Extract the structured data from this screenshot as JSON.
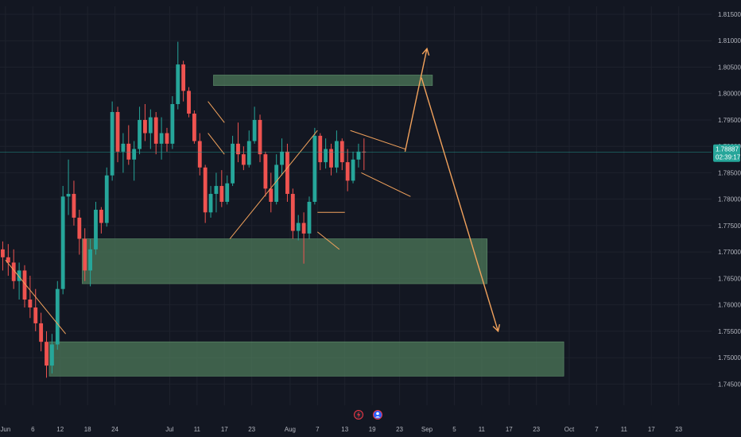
{
  "chart_data": {
    "type": "candlestick",
    "instrument_quote": {
      "last_price": 1.78887,
      "countdown": "02:39:17"
    },
    "colors": {
      "background": "#131722",
      "up": "#26a69a",
      "down": "#ef5350",
      "zone_fill": "#4e7a5a",
      "projection": "#f2a25c",
      "price_tag_bg": "#26a69a",
      "grid": "#1e222d",
      "axis_text": "#b2b5be",
      "last_price_line": "#26a69a"
    },
    "y_axis": {
      "range": [
        1.7425,
        1.8165
      ],
      "tick_labels": [
        "1.81500",
        "1.81000",
        "1.80500",
        "1.80000",
        "1.79500",
        "1.79000",
        "1.78500",
        "1.78000",
        "1.77500",
        "1.77000",
        "1.76500",
        "1.76000",
        "1.75500",
        "1.75000",
        "1.74500"
      ],
      "tick_values": [
        1.815,
        1.81,
        1.805,
        1.8,
        1.795,
        1.79,
        1.785,
        1.78,
        1.775,
        1.77,
        1.765,
        1.76,
        1.755,
        1.75,
        1.745
      ]
    },
    "x_axis": {
      "range": [
        0,
        130
      ],
      "tick_labels": [
        "Jun",
        "6",
        "12",
        "18",
        "24",
        "Jul",
        "11",
        "17",
        "23",
        "Aug",
        "7",
        "13",
        "19",
        "23",
        "Sep",
        "5",
        "11",
        "17",
        "23",
        "Oct",
        "7",
        "11",
        "17",
        "23"
      ],
      "tick_days": [
        1,
        6,
        11,
        16,
        21,
        31,
        36,
        41,
        46,
        53,
        58,
        63,
        68,
        73,
        78,
        83,
        88,
        93,
        98,
        104,
        109,
        114,
        119,
        124
      ]
    },
    "candles_ohlc": [
      [
        1.7705,
        1.772,
        1.7665,
        1.769
      ],
      [
        1.769,
        1.7715,
        1.7655,
        1.768
      ],
      [
        1.768,
        1.7705,
        1.763,
        1.7645
      ],
      [
        1.7645,
        1.768,
        1.761,
        1.7665
      ],
      [
        1.7665,
        1.7675,
        1.7595,
        1.761
      ],
      [
        1.761,
        1.7655,
        1.7575,
        1.7595
      ],
      [
        1.7595,
        1.763,
        1.755,
        1.7565
      ],
      [
        1.7565,
        1.7585,
        1.7512,
        1.753
      ],
      [
        1.753,
        1.755,
        1.7462,
        1.7485
      ],
      [
        1.7485,
        1.7545,
        1.747,
        1.7525
      ],
      [
        1.7525,
        1.7645,
        1.7515,
        1.763
      ],
      [
        1.763,
        1.7825,
        1.762,
        1.7805
      ],
      [
        1.7805,
        1.7875,
        1.777,
        1.781
      ],
      [
        1.781,
        1.7835,
        1.775,
        1.7765
      ],
      [
        1.7765,
        1.778,
        1.7695,
        1.7725
      ],
      [
        1.7725,
        1.7745,
        1.7645,
        1.7665
      ],
      [
        1.7665,
        1.7725,
        1.7635,
        1.7705
      ],
      [
        1.7705,
        1.7795,
        1.7695,
        1.778
      ],
      [
        1.778,
        1.7785,
        1.7735,
        1.7755
      ],
      [
        1.7755,
        1.786,
        1.7748,
        1.7845
      ],
      [
        1.7845,
        1.7985,
        1.7835,
        1.7965
      ],
      [
        1.7965,
        1.7975,
        1.787,
        1.789
      ],
      [
        1.789,
        1.7925,
        1.785,
        1.7905
      ],
      [
        1.7905,
        1.794,
        1.7865,
        1.7875
      ],
      [
        1.7875,
        1.791,
        1.7835,
        1.7895
      ],
      [
        1.7895,
        1.7975,
        1.7885,
        1.795
      ],
      [
        1.795,
        1.798,
        1.791,
        1.7925
      ],
      [
        1.7925,
        1.797,
        1.7895,
        1.7955
      ],
      [
        1.7955,
        1.7965,
        1.7885,
        1.7905
      ],
      [
        1.7905,
        1.7955,
        1.7875,
        1.7925
      ],
      [
        1.7925,
        1.7935,
        1.789,
        1.7905
      ],
      [
        1.7905,
        1.7995,
        1.7895,
        1.798
      ],
      [
        1.798,
        1.8098,
        1.797,
        1.8055
      ],
      [
        1.8055,
        1.8062,
        1.7985,
        1.8005
      ],
      [
        1.8005,
        1.8012,
        1.7955,
        1.7962
      ],
      [
        1.7962,
        1.7968,
        1.7905,
        1.791
      ],
      [
        1.791,
        1.7925,
        1.7845,
        1.786
      ],
      [
        1.786,
        1.7865,
        1.7755,
        1.7775
      ],
      [
        1.7775,
        1.7825,
        1.7765,
        1.781
      ],
      [
        1.781,
        1.785,
        1.7775,
        1.7825
      ],
      [
        1.7825,
        1.7855,
        1.7785,
        1.7795
      ],
      [
        1.7795,
        1.7845,
        1.779,
        1.783
      ],
      [
        1.783,
        1.792,
        1.7825,
        1.7905
      ],
      [
        1.7905,
        1.7945,
        1.787,
        1.7885
      ],
      [
        1.7885,
        1.79,
        1.7855,
        1.7865
      ],
      [
        1.7865,
        1.793,
        1.786,
        1.791
      ],
      [
        1.791,
        1.7975,
        1.7905,
        1.795
      ],
      [
        1.795,
        1.796,
        1.787,
        1.7885
      ],
      [
        1.7885,
        1.789,
        1.7805,
        1.782
      ],
      [
        1.782,
        1.785,
        1.7775,
        1.7795
      ],
      [
        1.7795,
        1.7885,
        1.779,
        1.7865
      ],
      [
        1.7865,
        1.7915,
        1.7845,
        1.789
      ],
      [
        1.789,
        1.7905,
        1.7795,
        1.781
      ],
      [
        1.781,
        1.782,
        1.7725,
        1.774
      ],
      [
        1.774,
        1.777,
        1.7722,
        1.7755
      ],
      [
        1.7755,
        1.7775,
        1.7678,
        1.7735
      ],
      [
        1.7735,
        1.7805,
        1.7725,
        1.7795
      ],
      [
        1.7795,
        1.7935,
        1.779,
        1.792
      ],
      [
        1.792,
        1.7925,
        1.7855,
        1.787
      ],
      [
        1.787,
        1.7915,
        1.7858,
        1.7895
      ],
      [
        1.7895,
        1.7905,
        1.7845,
        1.786
      ],
      [
        1.786,
        1.793,
        1.785,
        1.791
      ],
      [
        1.791,
        1.7915,
        1.7855,
        1.787
      ],
      [
        1.787,
        1.7895,
        1.7815,
        1.7835
      ],
      [
        1.7835,
        1.789,
        1.783,
        1.7875
      ],
      [
        1.7875,
        1.7905,
        1.786,
        1.789
      ],
      [
        1.789,
        1.7915,
        1.7855,
        1.78887
      ]
    ],
    "zones": [
      {
        "from_day": 39,
        "to_day": 79,
        "top": 1.8035,
        "bottom": 1.8015
      },
      {
        "from_day": 15,
        "to_day": 89,
        "top": 1.7725,
        "bottom": 1.764
      },
      {
        "from_day": 9,
        "to_day": 103,
        "top": 1.753,
        "bottom": 1.7465
      }
    ],
    "projection_path": [
      {
        "day": 74,
        "price": 1.789
      },
      {
        "day": 78,
        "price": 1.8085
      },
      {
        "day": 77,
        "price": 1.803
      },
      {
        "day": 91,
        "price": 1.755
      }
    ],
    "trendlines": [
      {
        "from": {
          "day": 1,
          "price": 1.7685
        },
        "to": {
          "day": 12,
          "price": 1.7545
        }
      },
      {
        "from": {
          "day": 38,
          "price": 1.7985
        },
        "to": {
          "day": 41,
          "price": 1.7945
        }
      },
      {
        "from": {
          "day": 38,
          "price": 1.7925
        },
        "to": {
          "day": 41,
          "price": 1.7885
        }
      },
      {
        "from": {
          "day": 42,
          "price": 1.7725
        },
        "to": {
          "day": 58,
          "price": 1.793
        }
      },
      {
        "from": {
          "day": 58,
          "price": 1.7775
        },
        "to": {
          "day": 63,
          "price": 1.7775
        }
      },
      {
        "from": {
          "day": 58,
          "price": 1.7738
        },
        "to": {
          "day": 62,
          "price": 1.7705
        }
      },
      {
        "from": {
          "day": 64,
          "price": 1.793
        },
        "to": {
          "day": 74,
          "price": 1.7895
        }
      },
      {
        "from": {
          "day": 66,
          "price": 1.785
        },
        "to": {
          "day": 75,
          "price": 1.7805
        }
      }
    ],
    "bottom_icons": [
      "lightning-icon",
      "avatar-icon"
    ]
  }
}
